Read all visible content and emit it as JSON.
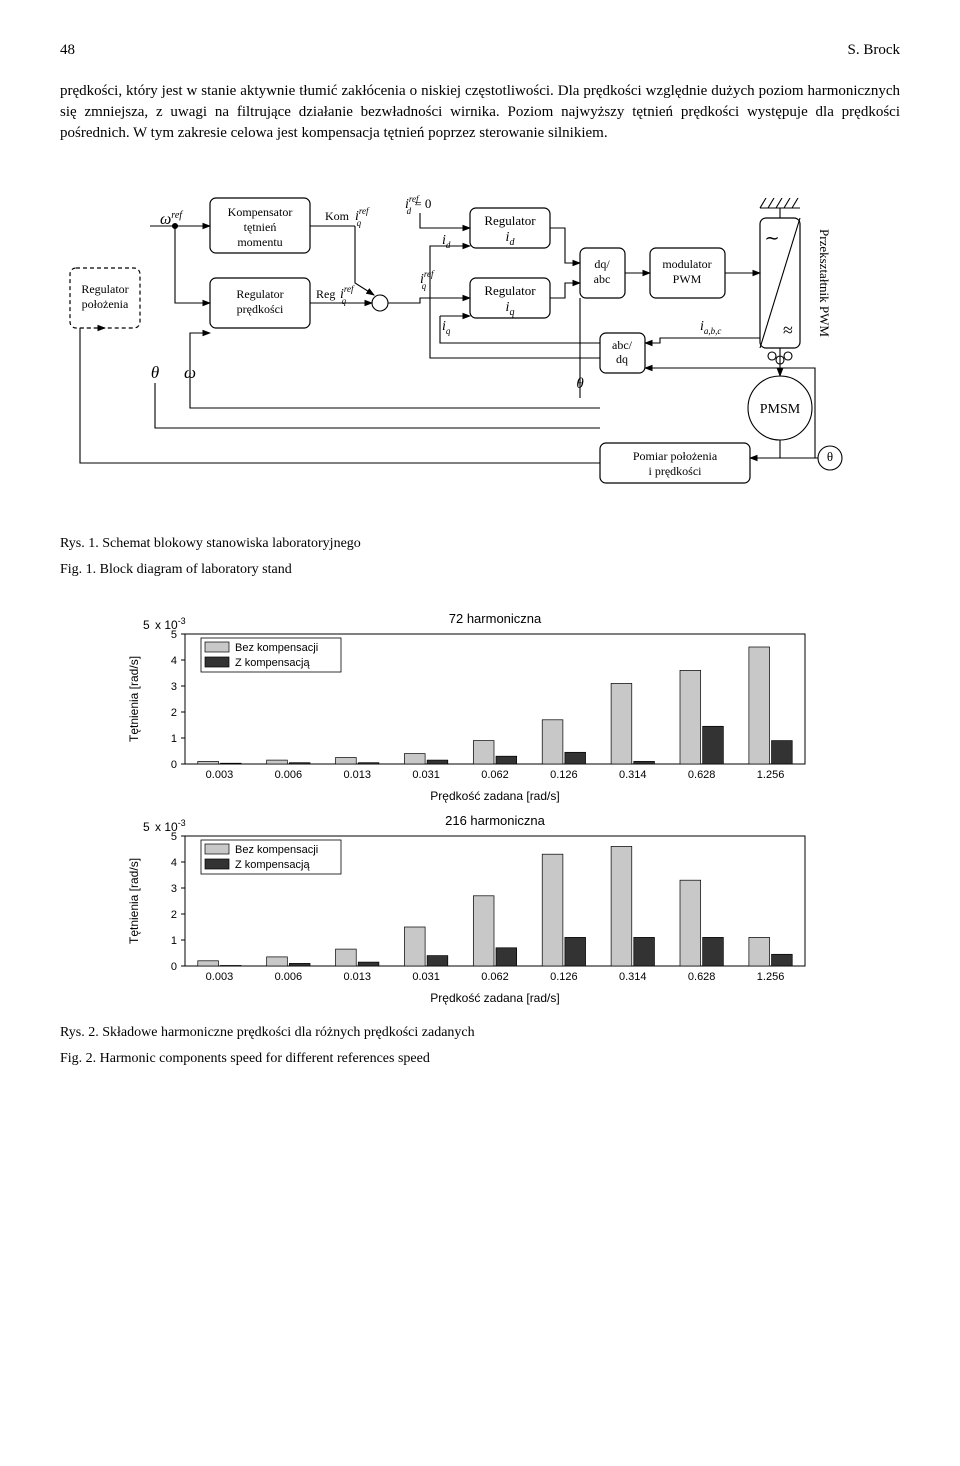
{
  "header": {
    "page_num": "48",
    "author": "S. Brock"
  },
  "paragraph": "prędkości, który jest w stanie aktywnie tłumić zakłócenia o niskiej częstotliwości. Dla prędkości względnie dużych poziom harmonicznych się zmniejsza, z uwagi na filtrujące działanie bezwładności wirnika. Poziom najwyższy tętnień prędkości występuje dla prędkości pośrednich. W tym zakresie celowa jest kompensacja tętnień poprzez sterowanie silnikiem.",
  "diagram": {
    "blocks": {
      "pos_reg": "Regulator\npołożenia",
      "komp": "Kompensator\ntętnień\nmomentu",
      "speed_reg": "Regulator\nprędkości",
      "reg_id": [
        "Regulator",
        "i",
        "d"
      ],
      "reg_iq": [
        "Regulator",
        "i",
        "q"
      ],
      "dqabc": "dq/\nabc",
      "abcdq": "abc/\ndq",
      "mod": "modulator\nPWM",
      "pmsm": "PMSM",
      "conv": "Przekształtnik PWM",
      "meas": "Pomiar położenia\ni prędkości"
    },
    "labels": {
      "omega_ref": [
        "ω",
        "ref"
      ],
      "omega": "ω",
      "theta": "θ",
      "theta2": "θ",
      "theta3": "θ",
      "kom": [
        "Kom",
        "i",
        "q",
        "ref"
      ],
      "reg": [
        "Reg",
        "i",
        "q",
        "ref"
      ],
      "iq_ref": [
        "i",
        "q",
        "ref"
      ],
      "id_ref_zero": [
        "i",
        "d",
        "ref",
        "= 0"
      ],
      "id": [
        "i",
        "d"
      ],
      "iq": [
        "i",
        "q"
      ],
      "iabc": [
        "i",
        "a,b,c"
      ]
    }
  },
  "fig1_caption_pl": "Rys. 1. Schemat blokowy stanowiska laboratoryjnego",
  "fig1_caption_en": "Fig. 1. Block diagram of laboratory stand",
  "chart_common": {
    "ylabel": "Tętnienia [rad/s]",
    "xlabel": "Prędkość zadana [rad/s]",
    "y_scale_prefix": "x 10",
    "y_scale_exp": "-3",
    "categories": [
      "0.003",
      "0.006",
      "0.013",
      "0.031",
      "0.062",
      "0.126",
      "0.314",
      "0.628",
      "1.256"
    ],
    "legend": [
      "Bez kompensacji",
      "Z kompensacją"
    ],
    "colors": {
      "no_comp": "#c8c8c8",
      "comp": "#333333",
      "border": "#000000",
      "axis": "#000000"
    },
    "y_max": 5,
    "y_ticks": [
      0,
      1,
      2,
      3,
      4,
      5
    ]
  },
  "chart_top": {
    "title": "72 harmoniczna",
    "no_comp": [
      0.1,
      0.15,
      0.25,
      0.4,
      0.9,
      1.7,
      3.1,
      3.6,
      4.5
    ],
    "comp": [
      0.03,
      0.05,
      0.05,
      0.15,
      0.3,
      0.45,
      0.1,
      1.45,
      0.9
    ]
  },
  "chart_bottom": {
    "title": "216 harmoniczna",
    "no_comp": [
      0.2,
      0.35,
      0.65,
      1.5,
      2.7,
      4.3,
      4.6,
      3.3,
      1.1
    ],
    "comp": [
      0.02,
      0.1,
      0.15,
      0.4,
      0.7,
      1.1,
      1.1,
      1.1,
      0.45
    ]
  },
  "fig2_caption_pl": "Rys. 2. Składowe harmoniczne prędkości dla różnych prędkości zadanych",
  "fig2_caption_en": "Fig. 2. Harmonic components speed for different references speed"
}
